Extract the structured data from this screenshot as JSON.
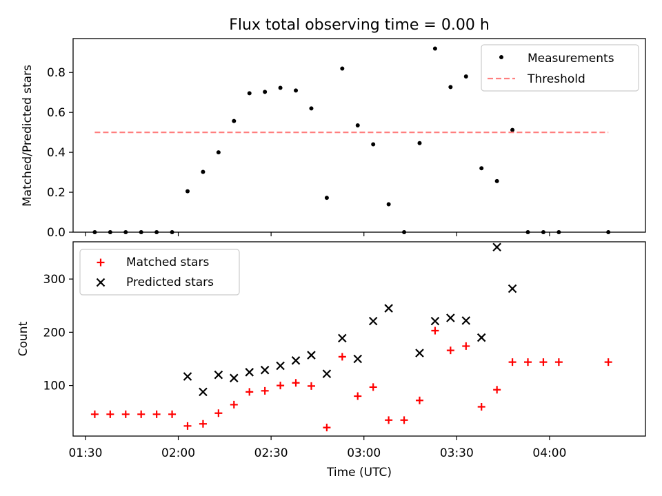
{
  "chart_data": [
    {
      "type": "scatter",
      "title": "Flux total observing time = 0.00 h",
      "xlabel": "",
      "ylabel": "Matched/Predicted stars",
      "xlim": [
        "01:26",
        "04:31"
      ],
      "ylim": [
        0,
        0.97
      ],
      "yticks": [
        0.0,
        0.2,
        0.4,
        0.6,
        0.8
      ],
      "ytick_labels": [
        "0.0",
        "0.2",
        "0.4",
        "0.6",
        "0.8"
      ],
      "legend": {
        "placement": "upper right",
        "entries": [
          "Measurements",
          "Threshold"
        ]
      },
      "series": [
        {
          "name": "Measurements",
          "marker": "dot",
          "color": "#000000",
          "x": [
            "01:33",
            "01:38",
            "01:43",
            "01:48",
            "01:53",
            "01:58",
            "02:03",
            "02:08",
            "02:13",
            "02:18",
            "02:23",
            "02:28",
            "02:33",
            "02:38",
            "02:43",
            "02:48",
            "02:53",
            "02:58",
            "03:03",
            "03:08",
            "03:13",
            "03:18",
            "03:23",
            "03:28",
            "03:33",
            "03:38",
            "03:43",
            "03:48",
            "03:53",
            "03:58",
            "04:03",
            "04:19"
          ],
          "y": [
            0.0,
            0.0,
            0.0,
            0.0,
            0.0,
            0.0,
            0.205,
            0.302,
            0.4,
            0.557,
            0.696,
            0.703,
            0.723,
            0.71,
            0.62,
            0.172,
            0.82,
            0.535,
            0.44,
            0.14,
            0.0,
            0.446,
            0.92,
            0.727,
            0.78,
            0.32,
            0.256,
            0.512,
            0.0,
            0.0,
            0.0,
            0.0
          ]
        },
        {
          "name": "Threshold",
          "line": "dashed",
          "color": "#ff7f7f",
          "x": [
            "01:33",
            "04:19"
          ],
          "y": [
            0.5,
            0.5
          ]
        }
      ]
    },
    {
      "type": "scatter",
      "xlabel": "Time (UTC)",
      "ylabel": "Count",
      "xlim": [
        "01:26",
        "04:31"
      ],
      "ylim": [
        5,
        370
      ],
      "xticks": [
        "01:30",
        "02:00",
        "02:30",
        "03:00",
        "03:30",
        "04:00"
      ],
      "yticks": [
        100,
        200,
        300
      ],
      "ytick_labels": [
        "100",
        "200",
        "300"
      ],
      "legend": {
        "placement": "upper left",
        "entries": [
          "Matched stars",
          "Predicted stars"
        ]
      },
      "series": [
        {
          "name": "Matched stars",
          "marker": "plus",
          "color": "#ff0000",
          "x": [
            "01:33",
            "01:38",
            "01:43",
            "01:48",
            "01:53",
            "01:58",
            "02:03",
            "02:08",
            "02:13",
            "02:18",
            "02:23",
            "02:28",
            "02:33",
            "02:38",
            "02:43",
            "02:48",
            "02:53",
            "02:58",
            "03:03",
            "03:08",
            "03:13",
            "03:18",
            "03:23",
            "03:28",
            "03:33",
            "03:38",
            "03:43",
            "03:48",
            "03:53",
            "03:58",
            "04:03",
            "04:19"
          ],
          "y": [
            46,
            46,
            46,
            46,
            46,
            46,
            24,
            28,
            48,
            64,
            88,
            90,
            100,
            105,
            99,
            21,
            154,
            80,
            97,
            35,
            35,
            72,
            203,
            166,
            174,
            60,
            92,
            144,
            144,
            144,
            144,
            144
          ]
        },
        {
          "name": "Predicted stars",
          "marker": "x",
          "color": "#000000",
          "x": [
            "02:03",
            "02:08",
            "02:13",
            "02:18",
            "02:23",
            "02:28",
            "02:33",
            "02:38",
            "02:43",
            "02:48",
            "02:53",
            "02:58",
            "03:03",
            "03:08",
            "03:18",
            "03:23",
            "03:28",
            "03:33",
            "03:38",
            "03:43",
            "03:48"
          ],
          "y": [
            117,
            88,
            120,
            114,
            125,
            129,
            137,
            147,
            157,
            122,
            189,
            150,
            221,
            245,
            161,
            221,
            227,
            222,
            190,
            360,
            282
          ]
        }
      ]
    }
  ]
}
